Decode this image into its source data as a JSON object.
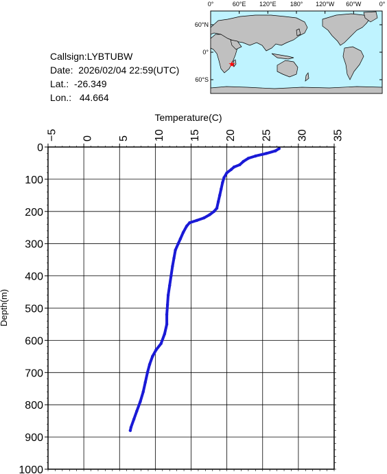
{
  "station": {
    "callsign_label": "Callsign:",
    "callsign": "LYBTUBW",
    "date_label": "Date:",
    "date": "2026/02/04 22:59(UTC)",
    "lat_label": "Lat.:",
    "lat": "-26.349",
    "lon_label": "Lon.:",
    "lon": "44.664"
  },
  "map": {
    "top_labels": [
      "0°",
      "60°E",
      "120°E",
      "180°",
      "120°W",
      "60°W",
      "0°"
    ],
    "left_labels": [
      "60°N",
      "0°",
      "60°S"
    ],
    "marker_lat": -26.349,
    "marker_lon": 44.664,
    "colors": {
      "ocean": "#bff3ff",
      "land": "#c0c0c0",
      "marker": "#ff0000"
    }
  },
  "chart_data": {
    "type": "line",
    "xlabel": "Temperature(C)",
    "ylabel": "Depth(m)",
    "xlim": [
      -5,
      35
    ],
    "ylim": [
      1000,
      0
    ],
    "x_ticks": [
      "-5",
      "0",
      "5",
      "10",
      "15",
      "20",
      "25",
      "30",
      "35"
    ],
    "y_ticks": [
      "0",
      "100",
      "200",
      "300",
      "400",
      "500",
      "600",
      "700",
      "800",
      "900",
      "1000"
    ],
    "grid": true,
    "series": [
      {
        "color": "#1a1ad6",
        "points": [
          [
            27.3,
            5
          ],
          [
            26.8,
            12
          ],
          [
            25.5,
            20
          ],
          [
            24.0,
            28
          ],
          [
            23.0,
            35
          ],
          [
            22.3,
            45
          ],
          [
            21.8,
            55
          ],
          [
            21.0,
            62
          ],
          [
            20.6,
            70
          ],
          [
            20.0,
            80
          ],
          [
            19.6,
            95
          ],
          [
            19.4,
            110
          ],
          [
            19.2,
            130
          ],
          [
            19.0,
            150
          ],
          [
            18.8,
            170
          ],
          [
            18.6,
            190
          ],
          [
            18.2,
            200
          ],
          [
            17.6,
            210
          ],
          [
            16.8,
            220
          ],
          [
            15.8,
            228
          ],
          [
            14.8,
            235
          ],
          [
            14.4,
            245
          ],
          [
            13.9,
            265
          ],
          [
            13.5,
            285
          ],
          [
            13.2,
            300
          ],
          [
            12.8,
            320
          ],
          [
            12.6,
            345
          ],
          [
            12.4,
            370
          ],
          [
            12.2,
            400
          ],
          [
            12.0,
            430
          ],
          [
            11.8,
            460
          ],
          [
            11.7,
            490
          ],
          [
            11.6,
            520
          ],
          [
            11.6,
            550
          ],
          [
            11.3,
            580
          ],
          [
            10.8,
            610
          ],
          [
            10.1,
            630
          ],
          [
            9.6,
            650
          ],
          [
            9.2,
            675
          ],
          [
            8.9,
            700
          ],
          [
            8.6,
            730
          ],
          [
            8.3,
            760
          ],
          [
            7.9,
            790
          ],
          [
            7.4,
            820
          ],
          [
            7.0,
            845
          ],
          [
            6.6,
            870
          ],
          [
            6.5,
            880
          ]
        ]
      }
    ]
  }
}
